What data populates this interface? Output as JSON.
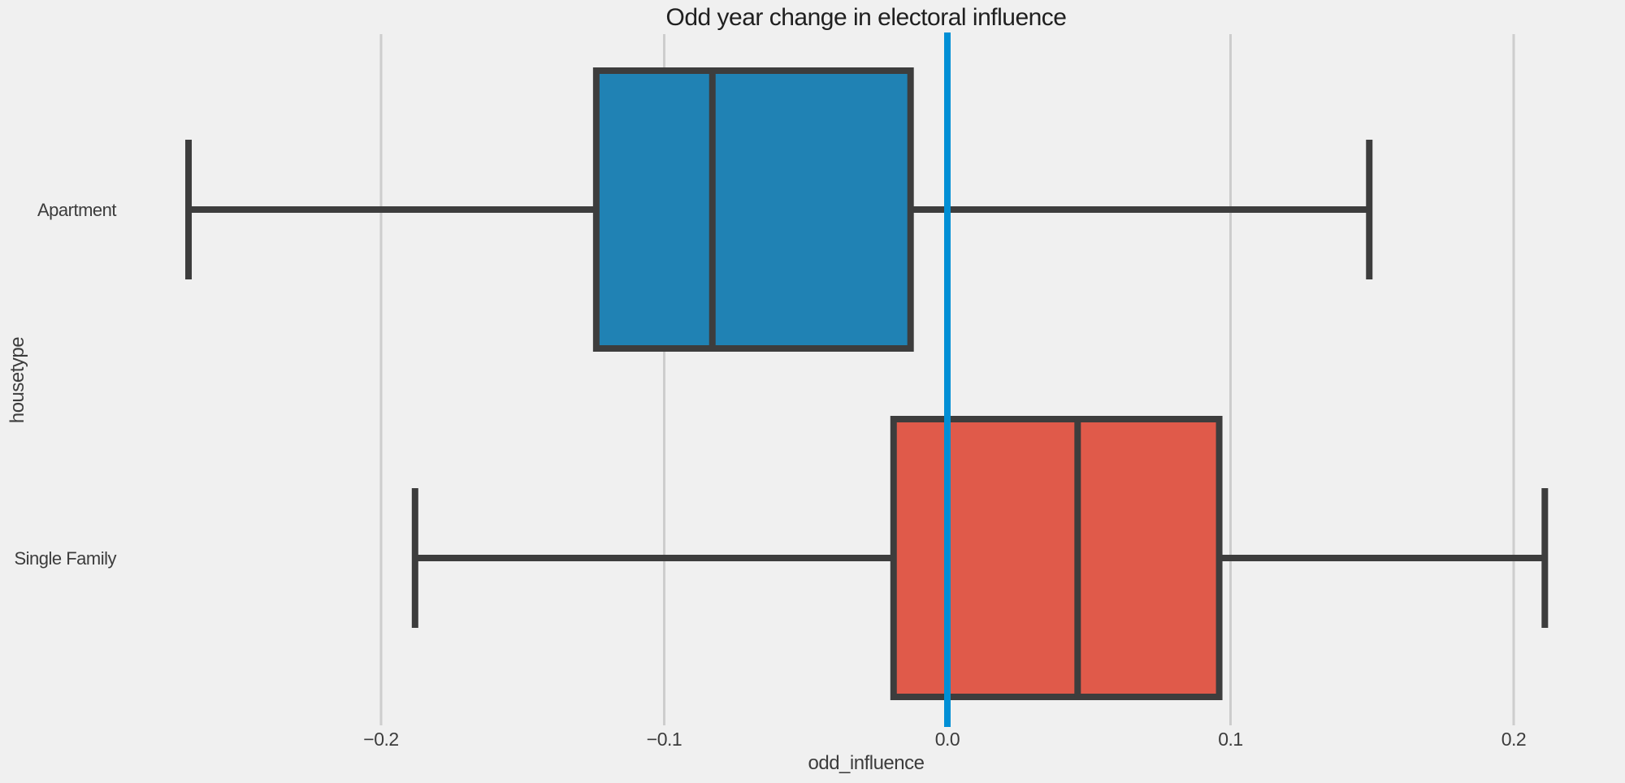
{
  "chart_data": {
    "type": "boxplot",
    "orientation": "horizontal",
    "title": "Odd year change in electoral influence",
    "xlabel": "odd_influence",
    "ylabel": "housetype",
    "categories": [
      "Apartment",
      "Single Family"
    ],
    "series": [
      {
        "category": "Apartment",
        "whisker_low": -0.268,
        "q1": -0.124,
        "median": -0.083,
        "q3": -0.013,
        "whisker_high": 0.149,
        "fill_color": "#2082b4"
      },
      {
        "category": "Single Family",
        "whisker_low": -0.188,
        "q1": -0.019,
        "median": 0.046,
        "q3": 0.096,
        "whisker_high": 0.211,
        "fill_color": "#e05a4a"
      }
    ],
    "x_ticks": [
      -0.2,
      -0.1,
      0.0,
      0.1,
      0.2
    ],
    "x_tick_labels": [
      "−0.2",
      "−0.1",
      "0.0",
      "0.1",
      "0.2"
    ],
    "reference_line_x": 0.0,
    "grid": true,
    "legend": "none",
    "colors": {
      "background": "#f0f0f0",
      "gridline": "#cdcdcd",
      "box_edge": "#3d3d3d",
      "reference_line": "#008fd5"
    }
  }
}
